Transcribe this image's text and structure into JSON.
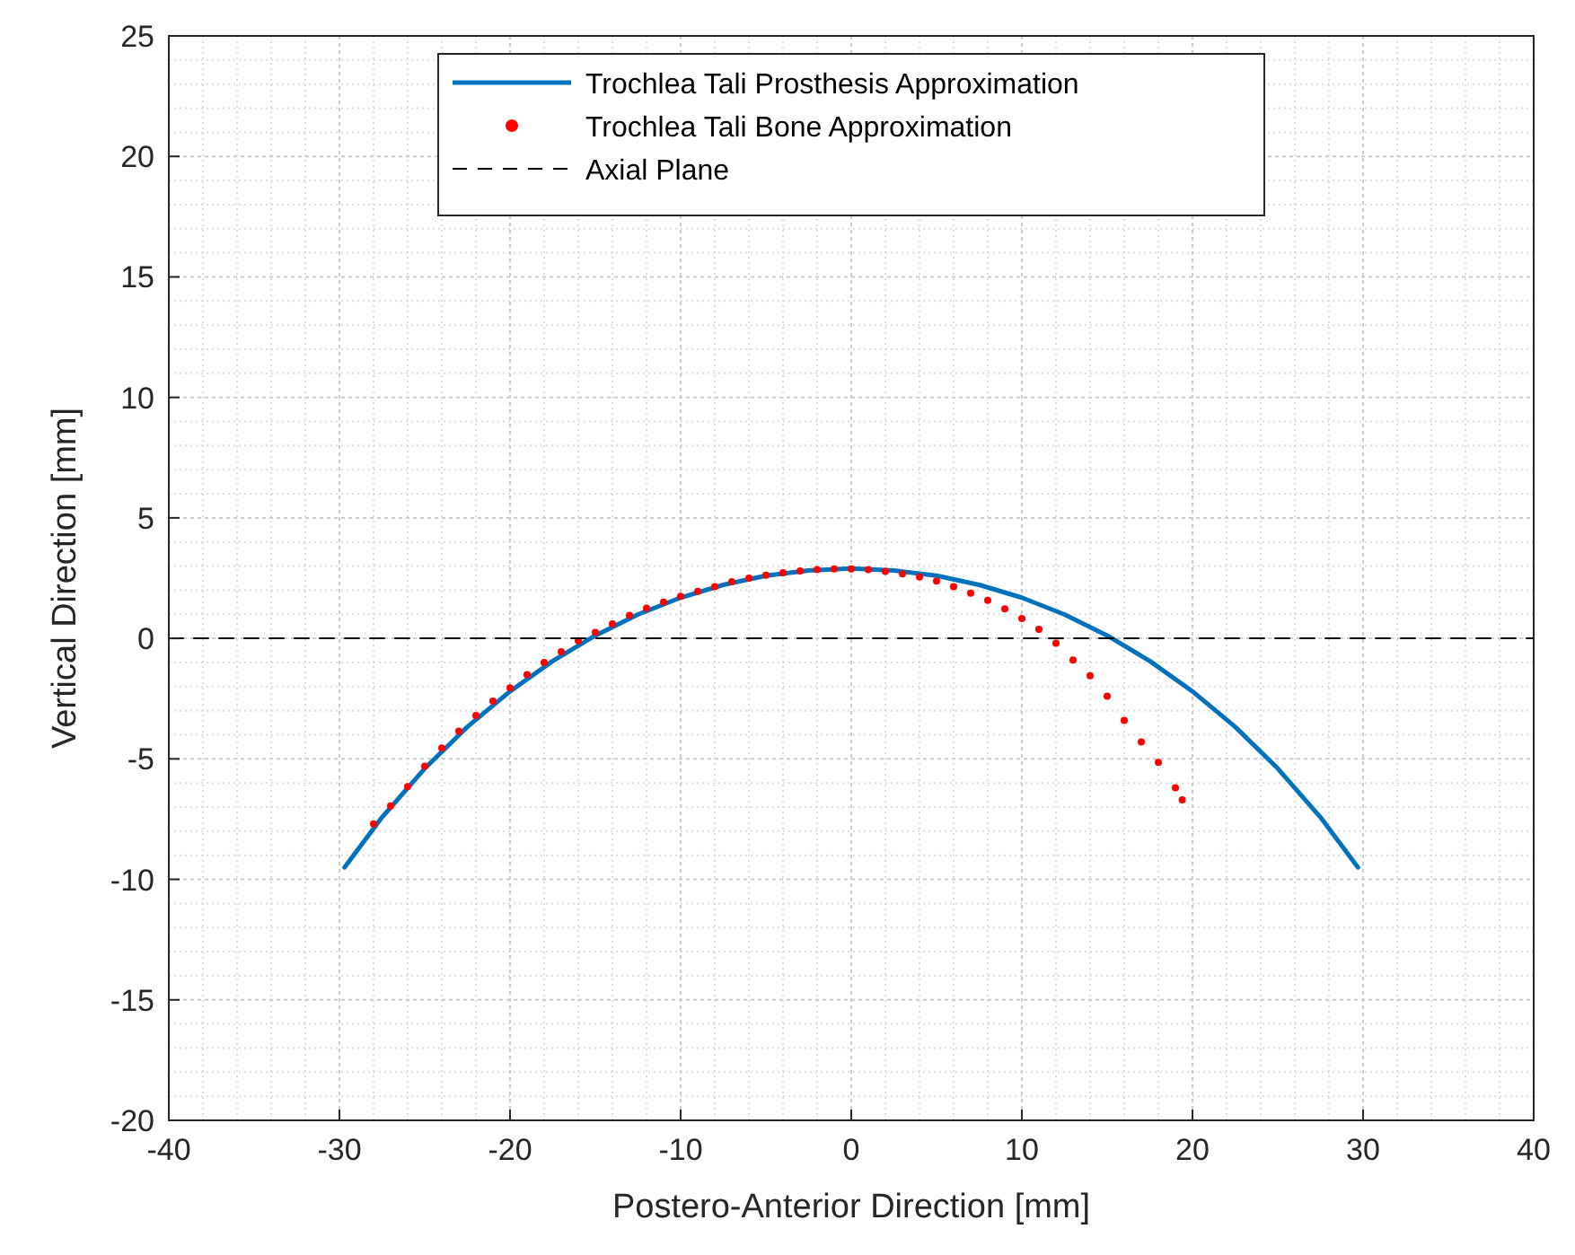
{
  "chart_data": {
    "type": "line",
    "xlabel": "Postero-Anterior Direction [mm]",
    "ylabel": "Vertical Direction [mm]",
    "xlim": [
      -40,
      40
    ],
    "xticks": [
      -40,
      -30,
      -20,
      -10,
      0,
      10,
      20,
      30,
      40
    ],
    "ylim": [
      -20,
      25
    ],
    "yticks": [
      -20,
      -15,
      -10,
      -5,
      0,
      5,
      10,
      15,
      20,
      25
    ],
    "grid": true,
    "legend": "top",
    "series": [
      {
        "name": "Trochlea Tali Prosthesis Approximation",
        "color": "#0072bd",
        "marker": "none",
        "line_style": "solid",
        "x": [
          -29.7,
          -27.5,
          -25,
          -22.5,
          -20,
          -17.5,
          -15,
          -12.5,
          -10,
          -7.5,
          -5,
          -2.5,
          0,
          2.5,
          5,
          7.5,
          10,
          12.5,
          15,
          17.5,
          20,
          22.5,
          25,
          27.5,
          29.7
        ],
        "values": [
          -9.5,
          -7.42,
          -5.4,
          -3.67,
          -2.2,
          -0.94,
          0.12,
          0.99,
          1.69,
          2.22,
          2.6,
          2.82,
          2.9,
          2.82,
          2.6,
          2.22,
          1.69,
          0.99,
          0.12,
          -0.94,
          -2.2,
          -3.67,
          -5.4,
          -7.42,
          -9.5
        ]
      },
      {
        "name": "Trochlea Tali Bone Approximation",
        "type": "scatter",
        "color": "#ff0000",
        "marker": "circle",
        "x": [
          -28,
          -27,
          -26,
          -25,
          -24,
          -23,
          -22,
          -21,
          -20,
          -19,
          -18,
          -17,
          -16,
          -15,
          -14,
          -13,
          -12,
          -11,
          -10,
          -9,
          -8,
          -7,
          -6,
          -5,
          -4,
          -3,
          -2,
          -1,
          0,
          1,
          2,
          3,
          4,
          5,
          6,
          7,
          8,
          9,
          10,
          11,
          12,
          13,
          14,
          15,
          16,
          17,
          18,
          19,
          19.4
        ],
        "values": [
          -7.7,
          -6.95,
          -6.15,
          -5.3,
          -4.55,
          -3.85,
          -3.2,
          -2.6,
          -2.05,
          -1.5,
          -1.0,
          -0.55,
          -0.1,
          0.25,
          0.6,
          0.95,
          1.25,
          1.5,
          1.75,
          1.95,
          2.15,
          2.35,
          2.5,
          2.62,
          2.72,
          2.8,
          2.85,
          2.88,
          2.88,
          2.85,
          2.78,
          2.68,
          2.55,
          2.38,
          2.15,
          1.88,
          1.58,
          1.22,
          0.82,
          0.38,
          -0.2,
          -0.9,
          -1.55,
          -2.4,
          -3.4,
          -4.3,
          -5.15,
          -6.2,
          -6.7
        ]
      },
      {
        "name": "Axial Plane",
        "color": "#000000",
        "marker": "none",
        "line_style": "dashed",
        "x": [
          -40,
          40
        ],
        "values": [
          0,
          0
        ]
      }
    ]
  }
}
